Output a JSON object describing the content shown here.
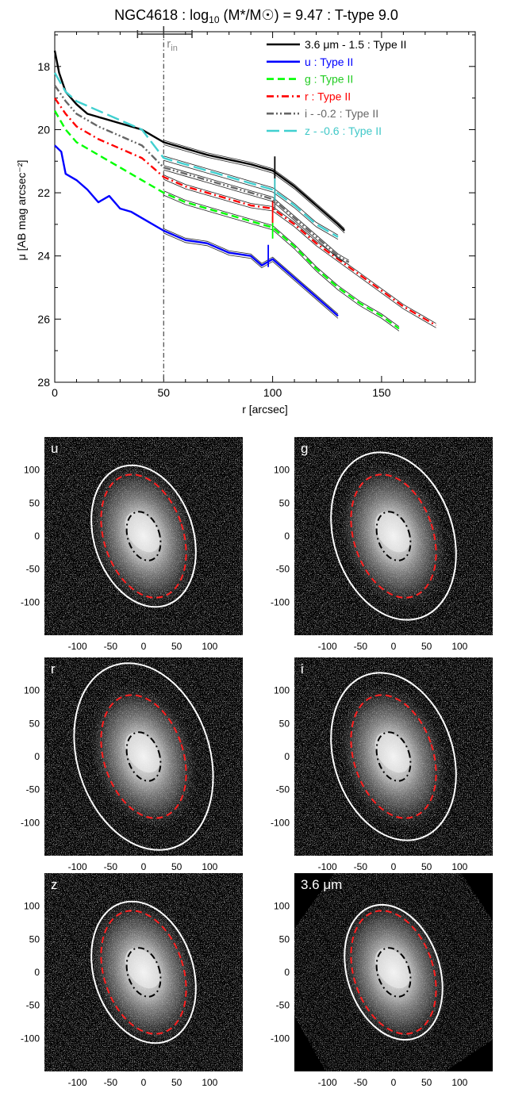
{
  "chart_data": [
    {
      "type": "line",
      "title": "NGC4618 : log10 (M*/M☉) = 9.47 : T-type 9.0",
      "xlabel": "r [arcsec]",
      "ylabel": "μ [AB mag arcsec⁻²]",
      "xlim": [
        0,
        193
      ],
      "ylim": [
        28,
        16.9
      ],
      "xticks": [
        "0",
        "50",
        "100",
        "150"
      ],
      "yticks": [
        "18",
        "20",
        "22",
        "24",
        "26",
        "28"
      ],
      "rin": {
        "label": "r",
        "sub": "in",
        "value": 50,
        "err": [
          38,
          63
        ]
      },
      "legend_position": "top-right",
      "series": [
        {
          "name": "3.6 μm - 1.5 : Type II",
          "color": "#000000",
          "dash": "solid",
          "x": [
            0,
            2,
            5,
            10,
            15,
            20,
            30,
            40,
            50,
            60,
            70,
            80,
            90,
            100,
            110,
            120,
            130,
            133
          ],
          "y": [
            17.5,
            18.2,
            18.8,
            19.2,
            19.5,
            19.6,
            19.8,
            20.0,
            20.4,
            20.6,
            20.8,
            20.95,
            21.1,
            21.3,
            21.8,
            22.4,
            23.0,
            23.2
          ],
          "breakpoint": [
            101,
            21.2
          ]
        },
        {
          "name": "u : Type II",
          "color": "#0000ff",
          "dash": "solid",
          "x": [
            0,
            3,
            5,
            10,
            15,
            20,
            25,
            30,
            35,
            40,
            50,
            60,
            70,
            80,
            90,
            95,
            100,
            110,
            120,
            130
          ],
          "y": [
            20.5,
            20.7,
            21.4,
            21.6,
            21.9,
            22.3,
            22.1,
            22.5,
            22.6,
            22.8,
            23.2,
            23.5,
            23.6,
            23.9,
            24.0,
            24.3,
            24.1,
            24.7,
            25.3,
            25.9
          ],
          "breakpoint": [
            98,
            24.0
          ]
        },
        {
          "name": "g : Type II",
          "color": "#00ff00",
          "dash": "dashed",
          "x": [
            0,
            5,
            10,
            20,
            30,
            40,
            50,
            60,
            70,
            80,
            90,
            100,
            110,
            120,
            130,
            140,
            150,
            158
          ],
          "y": [
            19.4,
            20.0,
            20.4,
            20.8,
            21.2,
            21.6,
            22.0,
            22.3,
            22.5,
            22.7,
            22.9,
            23.1,
            23.7,
            24.4,
            25.0,
            25.5,
            25.9,
            26.3
          ],
          "breakpoint": [
            100,
            23.1
          ]
        },
        {
          "name": "r : Type II",
          "color": "#ff0000",
          "dash": "dashdot",
          "x": [
            0,
            5,
            10,
            20,
            30,
            40,
            50,
            60,
            70,
            80,
            90,
            100,
            110,
            120,
            130,
            140,
            150,
            160,
            170,
            175
          ],
          "y": [
            19.0,
            19.5,
            19.9,
            20.3,
            20.6,
            20.9,
            21.5,
            21.8,
            22.0,
            22.2,
            22.4,
            22.5,
            23.0,
            23.6,
            24.1,
            24.6,
            25.1,
            25.6,
            26.0,
            26.2
          ],
          "breakpoint": [
            100,
            22.6
          ]
        },
        {
          "name": "i - -0.2 : Type II",
          "color": "#666666",
          "dash": "dashdotdot",
          "x": [
            0,
            5,
            10,
            20,
            30,
            40,
            50,
            60,
            70,
            80,
            90,
            100,
            110,
            120,
            130,
            135
          ],
          "y": [
            18.6,
            19.1,
            19.5,
            19.9,
            20.2,
            20.5,
            21.2,
            21.4,
            21.6,
            21.8,
            22.0,
            22.2,
            22.8,
            23.4,
            24.0,
            24.2
          ],
          "breakpoint": [
            101,
            22.2
          ]
        },
        {
          "name": "z - -0.6 : Type II",
          "color": "#40d0d0",
          "dash": "longdash",
          "x": [
            0,
            5,
            10,
            20,
            30,
            40,
            50,
            60,
            70,
            80,
            90,
            100,
            110,
            120,
            130
          ],
          "y": [
            18.2,
            18.8,
            19.1,
            19.4,
            19.7,
            20.0,
            20.9,
            21.1,
            21.3,
            21.5,
            21.7,
            21.9,
            22.4,
            23.0,
            23.4
          ],
          "breakpoint": [
            101,
            21.9
          ]
        }
      ]
    },
    {
      "type": "image",
      "panels": [
        {
          "label": "u",
          "ellipses": {
            "inner": [
              24,
              38,
              -18
            ],
            "mid": [
              60,
              96,
              -18
            ],
            "outer": [
              75,
              110,
              -18
            ]
          }
        },
        {
          "label": "g",
          "ellipses": {
            "inner": [
              24,
              38,
              -18
            ],
            "mid": [
              60,
              96,
              -18
            ],
            "outer": [
              90,
              130,
              -18
            ]
          }
        },
        {
          "label": "r",
          "ellipses": {
            "inner": [
              24,
              38,
              -18
            ],
            "mid": [
              60,
              96,
              -18
            ],
            "outer": [
              100,
              145,
              -18
            ]
          }
        },
        {
          "label": "i",
          "ellipses": {
            "inner": [
              24,
              38,
              -18
            ],
            "mid": [
              60,
              96,
              -18
            ],
            "outer": [
              90,
              130,
              -18
            ]
          }
        },
        {
          "label": "z",
          "ellipses": {
            "inner": [
              24,
              38,
              -18
            ],
            "mid": [
              60,
              96,
              -18
            ],
            "outer": [
              75,
              110,
              -18
            ]
          }
        },
        {
          "label": "3.6 μm",
          "ellipses": {
            "inner": [
              24,
              38,
              -18
            ],
            "mid": [
              60,
              96,
              -18
            ],
            "outer": [
              70,
              105,
              -18
            ]
          }
        }
      ],
      "xticks": [
        "-100",
        "-50",
        "0",
        "50",
        "100"
      ],
      "yticks": [
        "100",
        "50",
        "0",
        "-50",
        "-100"
      ],
      "xlim": [
        -150,
        150
      ],
      "ylim": [
        -150,
        150
      ]
    }
  ]
}
